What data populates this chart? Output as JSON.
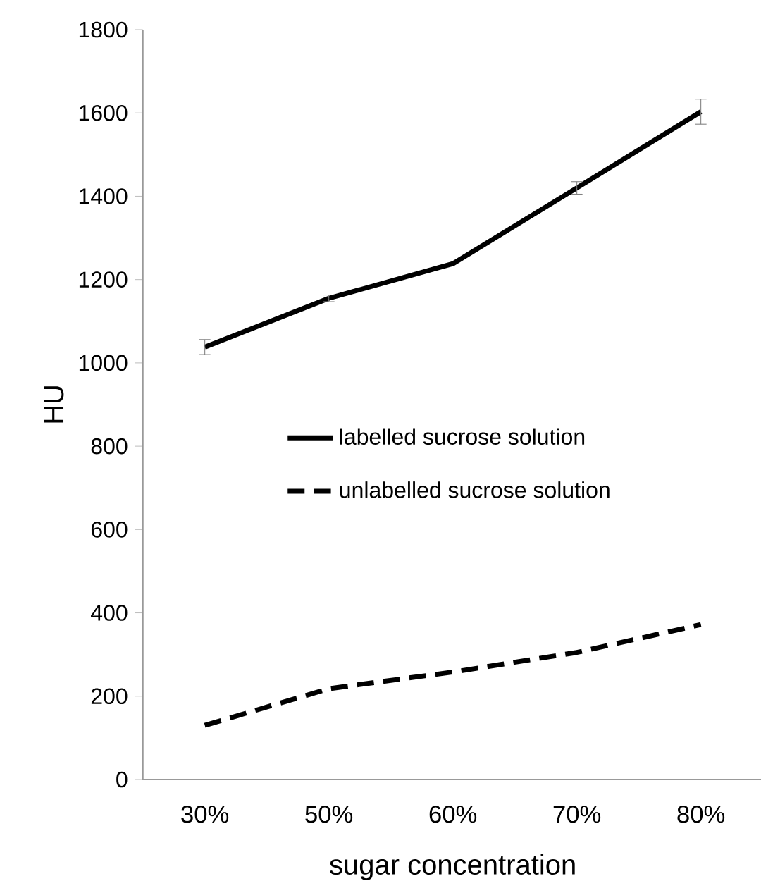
{
  "chart_data": {
    "type": "line",
    "xlabel": "sugar concentration",
    "ylabel": "HU",
    "categories": [
      "30%",
      "50%",
      "60%",
      "70%",
      "80%"
    ],
    "series": [
      {
        "name": "labelled sucrose solution",
        "color": "#000000",
        "line_style": "solid",
        "values": [
          1038,
          1155,
          1238,
          1420,
          1603
        ],
        "errors": [
          18,
          8,
          null,
          15,
          30
        ]
      },
      {
        "name": "unlabelled sucrose solution",
        "color": "#000000",
        "line_style": "dashed",
        "values": [
          130,
          218,
          258,
          305,
          372
        ]
      }
    ],
    "ylim": [
      0,
      1800
    ],
    "yticks": [
      0,
      200,
      400,
      600,
      800,
      1000,
      1200,
      1400,
      1600,
      1800
    ],
    "grid": false,
    "legend": "center",
    "marker": "none"
  }
}
